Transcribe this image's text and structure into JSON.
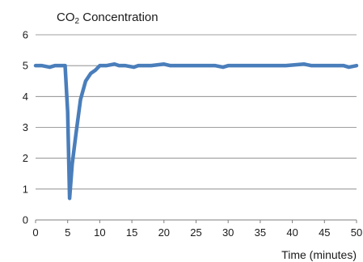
{
  "chart_data": {
    "type": "line",
    "title": {
      "prefix": "CO",
      "subscript": "2",
      "suffix": " Concentration"
    },
    "xlabel": "Time (minutes)",
    "ylabel": "",
    "xlim": [
      0,
      50
    ],
    "ylim": [
      0,
      6
    ],
    "xticks": [
      0,
      5,
      10,
      15,
      20,
      25,
      30,
      35,
      40,
      45,
      50
    ],
    "yticks": [
      0,
      1,
      2,
      3,
      4,
      5,
      6
    ],
    "grid": {
      "y": true,
      "x": false
    },
    "legend": "none",
    "series": [
      {
        "color": "#4a7ebb",
        "x": [
          0,
          1,
          2.2,
          3,
          4.6,
          5,
          5.3,
          5.7,
          6.3,
          7,
          7.8,
          8.6,
          9.3,
          10,
          11,
          12.3,
          13,
          14,
          15.3,
          16,
          18,
          20,
          21,
          23,
          26,
          28,
          29.2,
          30,
          33,
          36,
          39,
          41.8,
          43,
          46,
          48,
          48.8,
          50
        ],
        "y": [
          5,
          5,
          4.95,
          5,
          5,
          3.5,
          0.7,
          1.8,
          2.8,
          3.9,
          4.5,
          4.75,
          4.85,
          5,
          5,
          5.05,
          5,
          5,
          4.95,
          5,
          5,
          5.05,
          5,
          5,
          5,
          5,
          4.95,
          5,
          5,
          5,
          5,
          5.05,
          5,
          5,
          5,
          4.95,
          5
        ]
      }
    ],
    "colors": {
      "line": "#4a7ebb",
      "grid": "#7f7f7f",
      "axis": "#7f7f7f",
      "text": "#1a1a1a"
    }
  }
}
